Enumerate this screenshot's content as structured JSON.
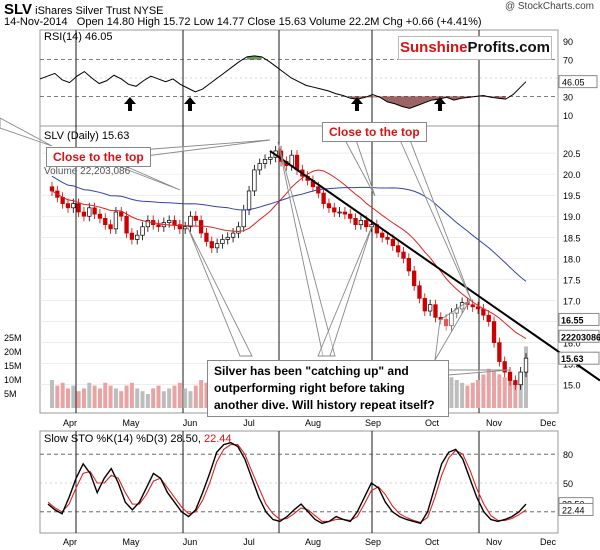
{
  "header": {
    "ticker": "SLV",
    "name": "iShares Silver Trust",
    "exchange": "NYSE",
    "date": "14-Nov-2014",
    "quote": "Open 14.80  High 15.72  Low 14.77  Close 15.63  Volume 22.2M  Chg +0.66 (+4.41%)"
  },
  "watermark": "@ StockCharts.com",
  "brand": {
    "part1": "Sunshine",
    "part2": "Profits.com"
  },
  "callouts": {
    "left": "Close to the top",
    "right": "Close to the top"
  },
  "note": "Silver has been \"catching up\" and outperforming right before taking another dive. Will history repeat itself?",
  "colors": {
    "price_up": "#000000",
    "price_down": "#cc0000",
    "ma_short": "#dd2222",
    "ma_long": "#3344aa",
    "rsi_overbought_fill": "#5a8a4a",
    "rsi_oversold_fill": "#8a4a4a",
    "trendline": "#000000",
    "volume_up": "#bdbdbd",
    "volume_down": "#e8a3a3"
  },
  "chart_data": [
    {
      "type": "line",
      "panel": "rsi",
      "label": "RSI(14) 46.05",
      "current_label": "46.05",
      "ylim": [
        0,
        100
      ],
      "ticks": [
        "90",
        "70",
        "50",
        "30",
        "10"
      ],
      "reference_lines": [
        30,
        70
      ],
      "x": [
        0,
        8,
        16,
        24,
        32,
        40,
        48,
        56,
        64,
        72,
        80,
        88,
        96,
        104,
        112,
        120,
        128,
        136,
        144,
        152,
        160,
        168,
        176,
        184,
        192,
        200,
        208,
        216,
        224,
        232,
        240,
        248,
        256,
        264,
        272,
        280,
        288,
        296,
        304,
        312,
        320,
        328,
        336,
        344,
        352,
        360,
        368,
        376,
        384,
        392,
        400,
        408,
        416,
        424,
        432,
        440,
        448,
        456,
        464,
        472,
        480,
        488,
        496,
        504,
        512,
        520,
        526
      ],
      "values": [
        49,
        52,
        55,
        48,
        45,
        52,
        57,
        50,
        44,
        47,
        53,
        49,
        43,
        41,
        47,
        52,
        49,
        46,
        49,
        43,
        39,
        35,
        38,
        44,
        50,
        56,
        62,
        68,
        73,
        74,
        73,
        68,
        62,
        56,
        50,
        46,
        42,
        40,
        38,
        36,
        33,
        31,
        28,
        27,
        29,
        32,
        29,
        24,
        22,
        19,
        17,
        20,
        23,
        26,
        27,
        29,
        26,
        28,
        29,
        30,
        31,
        29,
        28,
        27,
        32,
        40,
        46
      ],
      "markers": [
        "up-arrow",
        "up-arrow",
        "up-arrow",
        "up-arrow"
      ],
      "xlabel": "",
      "ylabel": ""
    },
    {
      "type": "candlestick",
      "panel": "price",
      "label": "SLV (Daily) 15.63",
      "volume_label": "Volume 22,203,086",
      "ylim": [
        14.4,
        21.0
      ],
      "ticks": [
        "20.5",
        "20.0",
        "19.5",
        "19.0",
        "18.5",
        "18.0",
        "17.5",
        "17.0",
        "16.5",
        "16.0",
        "15.5",
        "15.0"
      ],
      "x_labels": [
        "Apr",
        "May",
        "Jun",
        "Jul",
        "Aug",
        "Sep",
        "Oct",
        "Nov",
        "Dec"
      ],
      "ma_values": {
        "ma50": "16.55",
        "volume": "22203086",
        "close": "15.63"
      },
      "closes": [
        19.6,
        19.45,
        19.3,
        19.2,
        19.3,
        19.1,
        19.0,
        19.2,
        19.05,
        18.95,
        18.8,
        18.7,
        19.1,
        19.0,
        18.6,
        18.45,
        18.55,
        18.75,
        18.9,
        18.8,
        18.75,
        18.85,
        18.9,
        18.8,
        18.7,
        18.75,
        19.0,
        18.9,
        18.6,
        18.4,
        18.25,
        18.35,
        18.45,
        18.5,
        18.6,
        18.75,
        19.15,
        19.6,
        20.1,
        20.25,
        20.35,
        20.4,
        20.55,
        20.3,
        20.2,
        20.45,
        20.1,
        19.95,
        19.85,
        19.7,
        19.55,
        19.3,
        19.2,
        19.1,
        19.1,
        19.05,
        18.95,
        18.8,
        18.9,
        18.75,
        18.8,
        18.6,
        18.5,
        18.45,
        18.3,
        18.15,
        18.0,
        17.7,
        17.35,
        17.05,
        16.75,
        16.9,
        16.6,
        16.55,
        16.4,
        16.7,
        16.8,
        16.95,
        16.9,
        16.85,
        16.8,
        16.65,
        16.5,
        16.0,
        15.55,
        15.3,
        15.1,
        15.0,
        15.3,
        15.63
      ],
      "volume_ticks": [
        "25M",
        "20M",
        "15M",
        "10M",
        "5M"
      ],
      "volume_millions": [
        10,
        8,
        9,
        7,
        8,
        6,
        7,
        9,
        8,
        7,
        9,
        8,
        7,
        6,
        8,
        9,
        7,
        6,
        5,
        7,
        8,
        6,
        7,
        8,
        9,
        7,
        6,
        8,
        10,
        9,
        7,
        6,
        5,
        8,
        9,
        12,
        10,
        9,
        8,
        7,
        9,
        8,
        7,
        6,
        7,
        8,
        7,
        6,
        8,
        9,
        7,
        6,
        7,
        8,
        9,
        8,
        7,
        10,
        9,
        8,
        7,
        8,
        9,
        10,
        11,
        12,
        13,
        12,
        11,
        10,
        9,
        8,
        9,
        10,
        9,
        11,
        10,
        9,
        8,
        9,
        10,
        12,
        14,
        13,
        12,
        11,
        10,
        9,
        12,
        22
      ],
      "xlabel": "",
      "ylabel": ""
    },
    {
      "type": "line",
      "panel": "stochastic",
      "label": "Slow STO %K(14) %D(3) 28.50, 22.44",
      "label_k": "Slow STO %K(14) %D(3) 28.50,",
      "label_d": "22.44",
      "k_label": "28.50",
      "d_label": "22.44",
      "ylim": [
        0,
        100
      ],
      "ticks": [
        "80",
        "50",
        "20"
      ],
      "reference_lines": [
        20,
        80
      ],
      "k_values": [
        28,
        22,
        18,
        35,
        55,
        70,
        60,
        40,
        55,
        65,
        50,
        30,
        22,
        30,
        45,
        60,
        55,
        40,
        30,
        20,
        15,
        22,
        40,
        60,
        82,
        90,
        92,
        88,
        75,
        55,
        35,
        20,
        12,
        10,
        15,
        22,
        28,
        20,
        12,
        8,
        10,
        15,
        12,
        10,
        20,
        35,
        50,
        45,
        30,
        20,
        15,
        12,
        10,
        8,
        20,
        45,
        70,
        82,
        85,
        75,
        55,
        35,
        20,
        12,
        10,
        12,
        15,
        20,
        28
      ],
      "d_values": [
        30,
        24,
        20,
        28,
        45,
        60,
        62,
        50,
        50,
        58,
        55,
        40,
        28,
        28,
        38,
        52,
        55,
        45,
        35,
        25,
        18,
        20,
        32,
        50,
        72,
        85,
        90,
        90,
        80,
        62,
        45,
        28,
        18,
        12,
        13,
        18,
        24,
        22,
        16,
        10,
        10,
        12,
        12,
        11,
        15,
        28,
        42,
        46,
        38,
        26,
        18,
        14,
        11,
        9,
        14,
        34,
        58,
        76,
        84,
        80,
        64,
        44,
        28,
        16,
        11,
        11,
        13,
        17,
        22
      ],
      "x_labels": [
        "Apr",
        "May",
        "Jun",
        "Jul",
        "Aug",
        "Sep",
        "Oct",
        "Nov",
        "Dec"
      ],
      "xlabel": "",
      "ylabel": ""
    }
  ]
}
